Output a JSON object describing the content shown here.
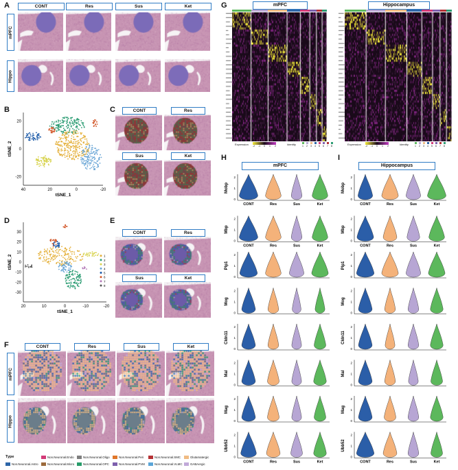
{
  "panels": {
    "A": "A",
    "B": "B",
    "C": "C",
    "D": "D",
    "E": "E",
    "F": "F",
    "G": "G",
    "H": "H",
    "I": "I"
  },
  "conditions": [
    "CONT",
    "Res",
    "Sus",
    "Ket"
  ],
  "regions": {
    "mpfc": "mPFC",
    "hippo": "Hippo",
    "hippocampus": "Hippocampus"
  },
  "tsne": {
    "xlabel": "tSNE_1",
    "ylabel": "tSNE_2",
    "b_xticks": [
      "40",
      "20",
      "0",
      "-20"
    ],
    "b_yticks": [
      "20",
      "0",
      "-20"
    ],
    "d_xticks": [
      "20",
      "10",
      "0",
      "-10",
      "-20"
    ],
    "d_yticks": [
      "30",
      "20",
      "10",
      "0",
      "-10",
      "-20",
      "-30"
    ]
  },
  "cluster_legend": [
    "1",
    "2",
    "3",
    "4",
    "5",
    "6",
    "7",
    "8"
  ],
  "cluster_colors": [
    "#e4b03a",
    "#2d9d74",
    "#d8d34f",
    "#6aa6d6",
    "#1c5aa8",
    "#d2572a",
    "#b277b6",
    "#555555"
  ],
  "heatmap": {
    "legend_expression": "Expression",
    "legend_identity": "Identity",
    "scale": [
      "-2",
      "-1",
      "0",
      "1",
      "2"
    ],
    "identity_nums": [
      "1",
      "2",
      "3",
      "4",
      "5",
      "6",
      "7",
      "8"
    ]
  },
  "violin": {
    "genes": [
      "Mobp",
      "Mbp",
      "Plp1",
      "Mog",
      "Cldn11",
      "Mal",
      "Mag",
      "Ubb52"
    ],
    "colors": {
      "CONT": "#2b5ea8",
      "Res": "#f4b27a",
      "Sus": "#b7a6d4",
      "Ket": "#5cb85c"
    },
    "mpfc_widths": [
      [
        0.95,
        0.8,
        0.55,
        0.8
      ],
      [
        0.95,
        0.8,
        0.55,
        0.8
      ],
      [
        0.9,
        0.8,
        0.75,
        0.85
      ],
      [
        0.7,
        0.55,
        0.45,
        0.5
      ],
      [
        0.7,
        0.55,
        0.5,
        0.6
      ],
      [
        0.7,
        0.6,
        0.5,
        0.65
      ],
      [
        0.7,
        0.6,
        0.5,
        0.6
      ],
      [
        0.8,
        0.7,
        0.6,
        0.65
      ]
    ],
    "hippo_widths": [
      [
        0.75,
        0.85,
        0.75,
        0.95
      ],
      [
        0.85,
        0.7,
        0.65,
        0.8
      ],
      [
        0.9,
        0.85,
        0.75,
        0.85
      ],
      [
        0.7,
        0.55,
        0.55,
        0.65
      ],
      [
        0.7,
        0.5,
        0.55,
        0.65
      ],
      [
        0.7,
        0.55,
        0.5,
        0.6
      ],
      [
        0.7,
        0.6,
        0.55,
        0.65
      ],
      [
        0.9,
        0.7,
        0.55,
        0.6
      ]
    ],
    "ytick_top": "2",
    "ytick_mid": "1",
    "ytick_bot": "0",
    "ubb_yticks": [
      "2",
      "1",
      "0"
    ]
  },
  "type_legend": {
    "title": "Type",
    "items": [
      {
        "label": "Non.Neuronal.Astro",
        "color": "#2d66a8"
      },
      {
        "label": "Non.Neuronal.Endo",
        "color": "#d23a78"
      },
      {
        "label": "Non.Neuronal.Micro",
        "color": "#9c6a3c"
      },
      {
        "label": "Non.Neuronal.Oligo",
        "color": "#7f7f7f"
      },
      {
        "label": "Non.Neuronal.OPC",
        "color": "#279c6a"
      },
      {
        "label": "Non.Neuronal.Peri",
        "color": "#e0772a"
      },
      {
        "label": "Non.Neuronal.PVM",
        "color": "#7d5fad"
      },
      {
        "label": "Non.Neuronal.SMC",
        "color": "#b63235"
      },
      {
        "label": "Non.Neuronal.VLMC",
        "color": "#5aa5d8"
      },
      {
        "label": "Glutamatergic",
        "color": "#f0bb83"
      },
      {
        "label": "GABAergic",
        "color": "#c1a9d9"
      }
    ]
  }
}
